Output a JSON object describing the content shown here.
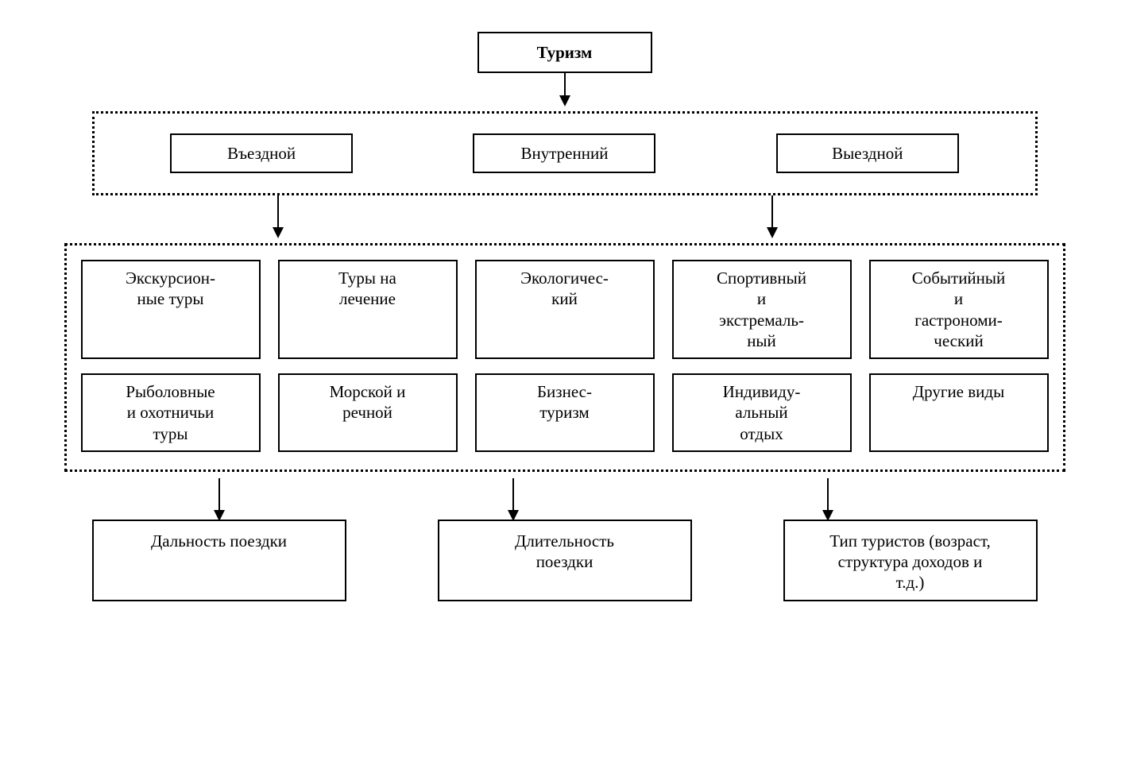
{
  "type": "tree",
  "background_color": "#ffffff",
  "border_color": "#000000",
  "text_color": "#000000",
  "font_family": "Times New Roman",
  "label_fontsize": 21,
  "root_fontsize": 22,
  "box_border_width": 2,
  "dotted_border_width": 3,
  "root": {
    "label": "Туризм",
    "bold": true
  },
  "level1": {
    "items": [
      {
        "label": "Въездной"
      },
      {
        "label": "Внутренний"
      },
      {
        "label": "Выездной"
      }
    ]
  },
  "level2": {
    "row1": [
      {
        "label": "Экскурсион-\nные туры"
      },
      {
        "label": "Туры на\nлечение"
      },
      {
        "label": "Экологичес-\nкий"
      },
      {
        "label": "Спортивный\nи\nэкстремаль-\nный"
      },
      {
        "label": "Событийный\nи\nгастрономи-\nческий"
      }
    ],
    "row2": [
      {
        "label": "Рыболовные\nи охотничьи\nтуры"
      },
      {
        "label": "Морской и\nречной"
      },
      {
        "label": "Бизнес-\nтуризм"
      },
      {
        "label": "Индивиду-\nальный\nотдых"
      },
      {
        "label": "Другие виды"
      }
    ]
  },
  "level3": {
    "items": [
      {
        "label": "Дальность поездки"
      },
      {
        "label": "Длительность\nпоездки"
      },
      {
        "label": "Тип туристов (возраст,\nструктура доходов и\nт.д.)"
      }
    ]
  },
  "arrows": [
    {
      "from": "root",
      "to": "level1-group"
    },
    {
      "from": "level1-group-left",
      "to": "level2-group"
    },
    {
      "from": "level1-group-right",
      "to": "level2-group"
    },
    {
      "from": "level2-group-a",
      "to": "level3-0"
    },
    {
      "from": "level2-group-b",
      "to": "level3-1"
    },
    {
      "from": "level2-group-c",
      "to": "level3-2"
    }
  ]
}
